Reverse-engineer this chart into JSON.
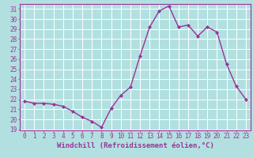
{
  "x": [
    0,
    1,
    2,
    3,
    4,
    5,
    6,
    7,
    8,
    9,
    10,
    11,
    12,
    13,
    14,
    15,
    16,
    17,
    18,
    19,
    20,
    21,
    22,
    23
  ],
  "y": [
    21.8,
    21.6,
    21.6,
    21.5,
    21.3,
    20.8,
    20.2,
    19.8,
    19.2,
    21.1,
    22.4,
    23.2,
    26.3,
    29.2,
    30.8,
    31.3,
    29.2,
    29.4,
    28.3,
    29.2,
    28.7,
    25.5,
    23.3,
    22.0
  ],
  "line_color": "#993399",
  "marker": "D",
  "marker_size": 2.0,
  "line_width": 1.0,
  "xlabel": "Windchill (Refroidissement éolien,°C)",
  "xlabel_fontsize": 6.5,
  "ylim_min": 19,
  "ylim_max": 32,
  "yticks": [
    19,
    20,
    21,
    22,
    23,
    24,
    25,
    26,
    27,
    28,
    29,
    30,
    31
  ],
  "xticks": [
    0,
    1,
    2,
    3,
    4,
    5,
    6,
    7,
    8,
    9,
    10,
    11,
    12,
    13,
    14,
    15,
    16,
    17,
    18,
    19,
    20,
    21,
    22,
    23
  ],
  "bg_color": "#b2e0e0",
  "grid_color": "#aed4d4",
  "tick_color": "#993399",
  "tick_fontsize": 5.5,
  "border_color": "#993399",
  "xlim_min": -0.5,
  "xlim_max": 23.5
}
